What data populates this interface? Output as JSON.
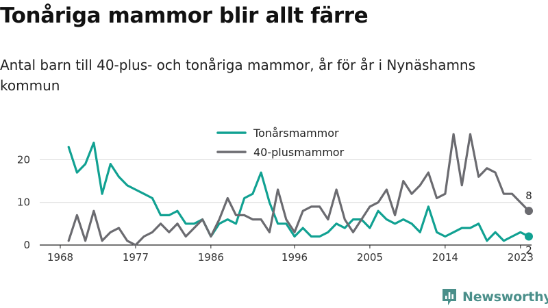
{
  "title": "Tonåriga mammor blir allt färre",
  "subtitle": "Antal barn till 40-plus- och tonåriga mammor, år för år i Nynäshamns kommun",
  "logo": {
    "text": "Newsworthy",
    "icon": "newsworthy-chart-icon"
  },
  "colors": {
    "teal": "#11a192",
    "gray": "#6b6b70",
    "grid": "#d8d8d8"
  },
  "chart_data": {
    "type": "line",
    "xlabel": "",
    "ylabel": "",
    "xlim": [
      1968,
      2024
    ],
    "ylim": [
      0,
      26
    ],
    "x_ticks": [
      1968,
      1977,
      1986,
      1996,
      2005,
      2014,
      2023
    ],
    "y_ticks": [
      0,
      10,
      20
    ],
    "grid": "horizontal",
    "legend_placement": "top-center",
    "x": [
      1969,
      1970,
      1971,
      1972,
      1973,
      1974,
      1975,
      1976,
      1977,
      1978,
      1979,
      1980,
      1981,
      1982,
      1983,
      1984,
      1985,
      1986,
      1987,
      1988,
      1989,
      1990,
      1991,
      1992,
      1993,
      1994,
      1995,
      1996,
      1997,
      1998,
      1999,
      2000,
      2001,
      2002,
      2003,
      2004,
      2005,
      2006,
      2007,
      2008,
      2009,
      2010,
      2011,
      2012,
      2013,
      2014,
      2015,
      2016,
      2017,
      2018,
      2019,
      2020,
      2021,
      2022,
      2023,
      2024
    ],
    "series": [
      {
        "name": "Tonårsmammor",
        "color": "#11a192",
        "end_label": "2",
        "values": [
          23,
          17,
          19,
          24,
          12,
          19,
          16,
          14,
          13,
          12,
          11,
          7,
          7,
          8,
          5,
          5,
          6,
          2,
          5,
          6,
          5,
          11,
          12,
          17,
          10,
          5,
          5,
          2,
          4,
          2,
          2,
          3,
          5,
          4,
          6,
          6,
          4,
          8,
          6,
          5,
          6,
          5,
          3,
          9,
          3,
          2,
          3,
          4,
          4,
          5,
          1,
          3,
          1,
          2,
          3,
          2
        ]
      },
      {
        "name": "40-plusmammor",
        "color": "#6b6b70",
        "end_label": "8",
        "values": [
          1,
          7,
          1,
          8,
          1,
          3,
          4,
          1,
          0,
          2,
          3,
          5,
          3,
          5,
          2,
          4,
          6,
          2,
          6,
          11,
          7,
          7,
          6,
          6,
          3,
          13,
          6,
          3,
          8,
          9,
          9,
          6,
          13,
          6,
          3,
          6,
          9,
          10,
          13,
          7,
          15,
          12,
          14,
          17,
          11,
          12,
          26,
          14,
          26,
          16,
          18,
          17,
          12,
          12,
          10,
          8
        ]
      }
    ]
  }
}
